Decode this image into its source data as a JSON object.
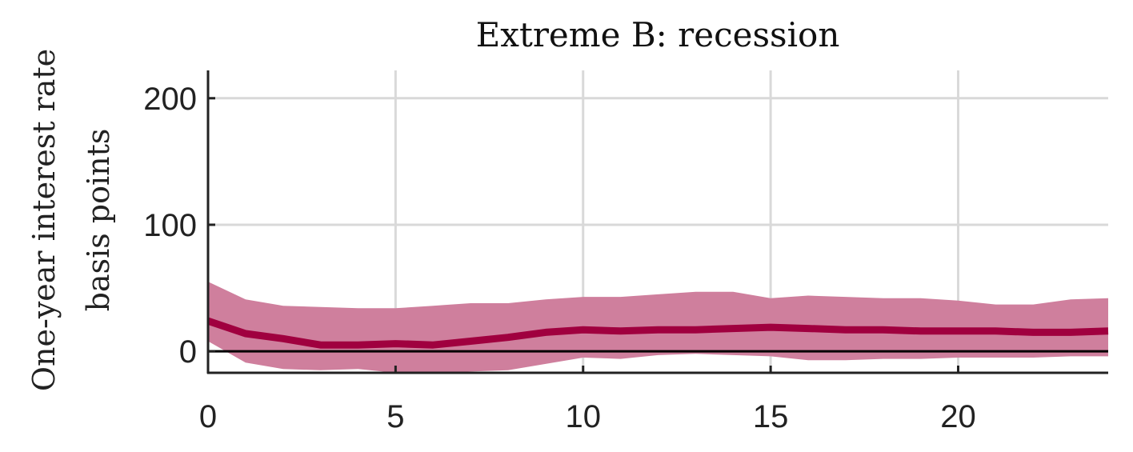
{
  "chart_data": {
    "type": "line",
    "title": "Extreme B: recession",
    "ylabel": [
      "One-year interest rate",
      "basis points"
    ],
    "xlabel": "",
    "xlim": [
      0,
      24
    ],
    "ylim": [
      -17,
      222
    ],
    "xticks": [
      0,
      5,
      10,
      15,
      20
    ],
    "yticks": [
      0,
      100,
      200
    ],
    "grid": true,
    "zero_line": 0,
    "x": [
      0,
      1,
      2,
      3,
      4,
      5,
      6,
      7,
      8,
      9,
      10,
      11,
      12,
      13,
      14,
      15,
      16,
      17,
      18,
      19,
      20,
      21,
      22,
      23,
      24
    ],
    "series": [
      {
        "kind": "median",
        "values": [
          24,
          14,
          10,
          5,
          5,
          6,
          5,
          8,
          11,
          15,
          17,
          16,
          17,
          17,
          18,
          19,
          18,
          17,
          17,
          16,
          16,
          16,
          15,
          15,
          16
        ]
      },
      {
        "kind": "band_upper",
        "values": [
          55,
          41,
          36,
          35,
          34,
          34,
          36,
          38,
          38,
          41,
          43,
          43,
          45,
          47,
          47,
          42,
          44,
          43,
          42,
          42,
          40,
          37,
          37,
          41,
          42
        ]
      },
      {
        "kind": "band_lower",
        "values": [
          8,
          -9,
          -14,
          -15,
          -14,
          -17,
          -17,
          -16,
          -15,
          -10,
          -5,
          -6,
          -3,
          -2,
          -3,
          -4,
          -7,
          -7,
          -6,
          -6,
          -5,
          -5,
          -5,
          -4,
          -4
        ]
      }
    ],
    "colors": {
      "median": "#a0003f",
      "band": "#cf7f9d",
      "zero_line": "#000000",
      "axis": "#222222",
      "grid": "#d9d9d9"
    }
  }
}
